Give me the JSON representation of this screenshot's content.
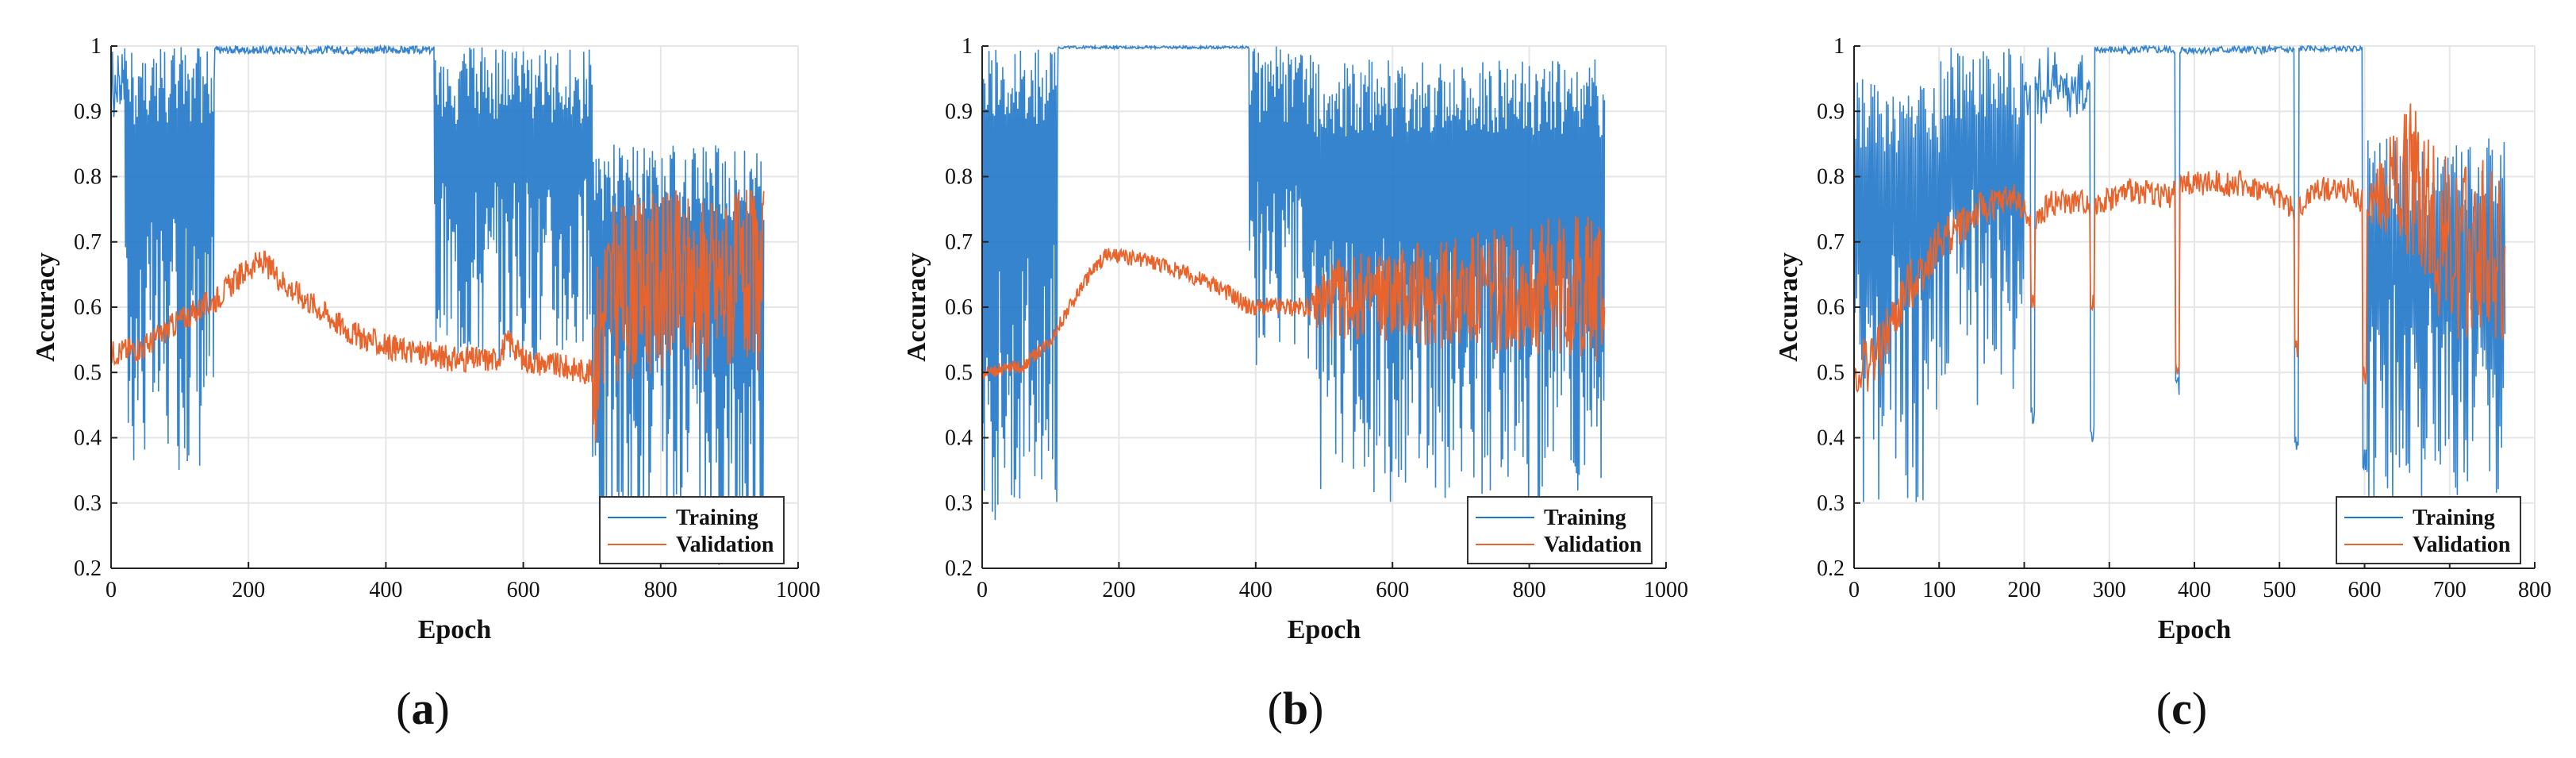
{
  "figure": {
    "colors": {
      "training": "#1f77c8",
      "validation": "#e8642c",
      "grid": "#e6e6e6",
      "axis": "#222222"
    }
  },
  "chart_data": [
    {
      "type": "line",
      "panel": "a",
      "caption": {
        "open": "(",
        "letter": "a",
        "close": ")"
      },
      "xlabel": "Epoch",
      "ylabel": "Accuracy",
      "xlim": [
        0,
        1000
      ],
      "ylim": [
        0.2,
        1
      ],
      "xticks": [
        0,
        200,
        400,
        600,
        800,
        1000
      ],
      "yticks": [
        0.2,
        0.3,
        0.4,
        0.5,
        0.6,
        0.7,
        0.8,
        0.9,
        1
      ],
      "ytick_labels": [
        "0.2",
        "0.3",
        "0.4",
        "0.5",
        "0.6",
        "0.7",
        "0.8",
        "0.9",
        "1"
      ],
      "grid": true,
      "legend": {
        "position": "bottom-right",
        "entries": [
          "Training",
          "Validation"
        ]
      },
      "epochs": 950,
      "series": [
        {
          "name": "Training",
          "segments": [
            {
              "x": [
                0,
                20
              ],
              "floor": 0.9,
              "top": 1.0
            },
            {
              "x": [
                20,
                150
              ],
              "floor": 0.35,
              "top": 1.0
            },
            {
              "x": [
                150,
                470
              ],
              "floor": 0.97,
              "top": 1.0
            },
            {
              "x": [
                470,
                700
              ],
              "floor": 0.51,
              "top": 1.0
            },
            {
              "x": [
                700,
                950
              ],
              "floor": 0.2,
              "top": 0.85
            }
          ]
        },
        {
          "name": "Validation",
          "points": [
            [
              0,
              0.53
            ],
            [
              50,
              0.54
            ],
            [
              100,
              0.58
            ],
            [
              150,
              0.61
            ],
            [
              200,
              0.66
            ],
            [
              220,
              0.67
            ],
            [
              260,
              0.63
            ],
            [
              300,
              0.6
            ],
            [
              350,
              0.56
            ],
            [
              400,
              0.54
            ],
            [
              450,
              0.53
            ],
            [
              500,
              0.52
            ],
            [
              560,
              0.52
            ],
            [
              580,
              0.55
            ],
            [
              600,
              0.52
            ],
            [
              650,
              0.51
            ],
            [
              700,
              0.5
            ],
            [
              720,
              0.62
            ],
            [
              800,
              0.64
            ],
            [
              900,
              0.64
            ],
            [
              950,
              0.64
            ]
          ],
          "noise": [
            [
              0,
              0.02
            ],
            [
              700,
              0.02
            ],
            [
              701,
              0.14
            ],
            [
              950,
              0.14
            ]
          ]
        }
      ]
    },
    {
      "type": "line",
      "panel": "b",
      "caption": {
        "open": "(",
        "letter": "b",
        "close": ")"
      },
      "xlabel": "Epoch",
      "ylabel": "Accuracy",
      "xlim": [
        0,
        1000
      ],
      "ylim": [
        0.2,
        1
      ],
      "xticks": [
        0,
        200,
        400,
        600,
        800,
        1000
      ],
      "yticks": [
        0.2,
        0.3,
        0.4,
        0.5,
        0.6,
        0.7,
        0.8,
        0.9,
        1
      ],
      "ytick_labels": [
        "0.2",
        "0.3",
        "0.4",
        "0.5",
        "0.6",
        "0.7",
        "0.8",
        "0.9",
        "1"
      ],
      "grid": true,
      "legend": {
        "position": "bottom-right",
        "entries": [
          "Training",
          "Validation"
        ]
      },
      "epochs": 910,
      "series": [
        {
          "name": "Training",
          "segments": [
            {
              "x": [
                0,
                110
              ],
              "floor": 0.27,
              "top": 1.0
            },
            {
              "x": [
                110,
                390
              ],
              "floor": 0.99,
              "top": 1.0
            },
            {
              "x": [
                390,
                480
              ],
              "floor": 0.51,
              "top": 1.0
            },
            {
              "x": [
                480,
                910
              ],
              "floor": 0.3,
              "top": 0.98
            }
          ]
        },
        {
          "name": "Validation",
          "points": [
            [
              0,
              0.5
            ],
            [
              60,
              0.51
            ],
            [
              100,
              0.55
            ],
            [
              150,
              0.64
            ],
            [
              180,
              0.68
            ],
            [
              250,
              0.67
            ],
            [
              300,
              0.65
            ],
            [
              350,
              0.63
            ],
            [
              390,
              0.6
            ],
            [
              480,
              0.6
            ],
            [
              500,
              0.61
            ],
            [
              600,
              0.62
            ],
            [
              700,
              0.62
            ],
            [
              800,
              0.63
            ],
            [
              910,
              0.63
            ]
          ],
          "noise": [
            [
              0,
              0.01
            ],
            [
              480,
              0.015
            ],
            [
              500,
              0.06
            ],
            [
              910,
              0.12
            ]
          ]
        }
      ]
    },
    {
      "type": "line",
      "panel": "c",
      "caption": {
        "open": "(",
        "letter": "c",
        "close": ")"
      },
      "xlabel": "Epoch",
      "ylabel": "Accuracy",
      "xlim": [
        0,
        800
      ],
      "ylim": [
        0.2,
        1
      ],
      "xticks": [
        0,
        100,
        200,
        300,
        400,
        500,
        600,
        700,
        800
      ],
      "yticks": [
        0.2,
        0.3,
        0.4,
        0.5,
        0.6,
        0.7,
        0.8,
        0.9,
        1
      ],
      "ytick_labels": [
        "0.2",
        "0.3",
        "0.4",
        "0.5",
        "0.6",
        "0.7",
        "0.8",
        "0.9",
        "1"
      ],
      "grid": true,
      "legend": {
        "position": "bottom-right",
        "entries": [
          "Training",
          "Validation"
        ]
      },
      "epochs": 765,
      "series": [
        {
          "name": "Training",
          "segments": [
            {
              "x": [
                0,
                100
              ],
              "floor": 0.28,
              "top": 0.95
            },
            {
              "x": [
                100,
                200
              ],
              "floor": 0.45,
              "top": 1.0
            },
            {
              "x": [
                200,
                280
              ],
              "floor": 0.9,
              "top": 1.0
            },
            {
              "x": [
                280,
                520
              ],
              "floor": 0.97,
              "top": 1.0
            },
            {
              "x": [
                520,
                600
              ],
              "floor": 0.98,
              "top": 1.0
            },
            {
              "x": [
                600,
                765
              ],
              "floor": 0.3,
              "top": 0.86
            }
          ],
          "dips": [
            [
              210,
              0.41
            ],
            [
              280,
              0.37
            ],
            [
              380,
              0.45
            ],
            [
              520,
              0.36
            ],
            [
              600,
              0.35
            ]
          ]
        },
        {
          "name": "Validation",
          "points": [
            [
              0,
              0.5
            ],
            [
              30,
              0.53
            ],
            [
              60,
              0.62
            ],
            [
              100,
              0.7
            ],
            [
              150,
              0.75
            ],
            [
              190,
              0.77
            ],
            [
              210,
              0.72
            ],
            [
              230,
              0.76
            ],
            [
              270,
              0.76
            ],
            [
              290,
              0.76
            ],
            [
              330,
              0.78
            ],
            [
              370,
              0.77
            ],
            [
              390,
              0.79
            ],
            [
              450,
              0.79
            ],
            [
              500,
              0.77
            ],
            [
              520,
              0.74
            ],
            [
              540,
              0.78
            ],
            [
              580,
              0.78
            ],
            [
              600,
              0.76
            ],
            [
              640,
              0.79
            ],
            [
              660,
              0.79
            ],
            [
              700,
              0.68
            ],
            [
              740,
              0.7
            ],
            [
              765,
              0.66
            ]
          ],
          "noise": [
            [
              0,
              0.05
            ],
            [
              200,
              0.02
            ],
            [
              600,
              0.02
            ],
            [
              660,
              0.14
            ],
            [
              765,
              0.14
            ]
          ],
          "dips": [
            [
              210,
              0.58
            ],
            [
              280,
              0.58
            ],
            [
              380,
              0.49
            ],
            [
              520,
              0.52
            ],
            [
              600,
              0.47
            ]
          ]
        }
      ]
    }
  ]
}
